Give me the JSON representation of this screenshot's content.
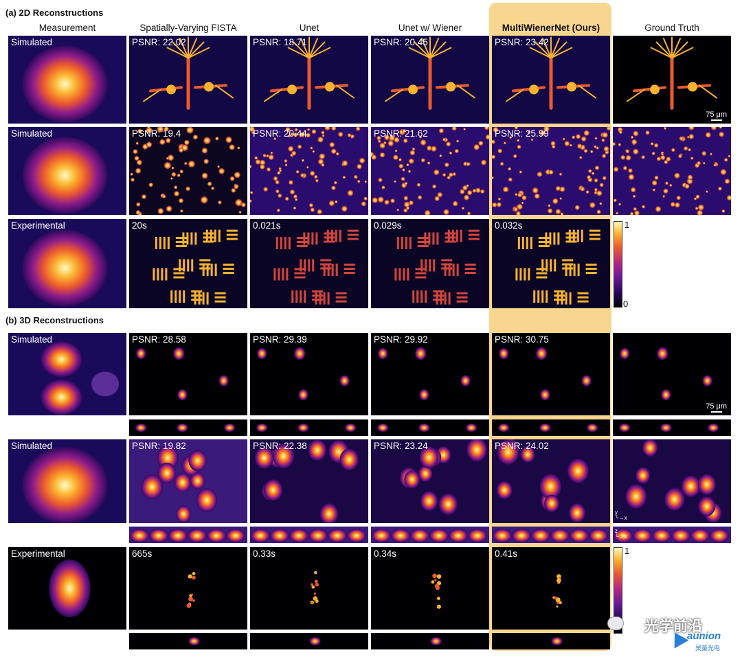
{
  "sections": {
    "a_title": "(a) 2D Reconstructions",
    "b_title": "(b) 3D Reconstructions"
  },
  "columns": [
    {
      "label": "Measurement"
    },
    {
      "label": "Spatially-Varying FISTA"
    },
    {
      "label": "Unet"
    },
    {
      "label": "Unet w/ Wiener"
    },
    {
      "label": "MultiWienerNet (Ours)",
      "highlighted": true
    },
    {
      "label": "Ground Truth"
    }
  ],
  "rows": [
    {
      "type": "Simulated",
      "values": [
        "PSNR: 22.02",
        "PSNR: 18.71",
        "PSNR: 20.45",
        "PSNR: 23.42"
      ]
    },
    {
      "type": "Simulated",
      "values": [
        "PSNR: 19.4",
        "PSNR: 20.44",
        "PSNR: 21.62",
        "PSNR: 25.99"
      ]
    },
    {
      "type": "Experimental",
      "values": [
        "20s",
        "0.021s",
        "0.029s",
        "0.032s"
      ]
    },
    {
      "type": "Simulated",
      "values": [
        "PSNR: 28.58",
        "PSNR: 29.39",
        "PSNR: 29.92",
        "PSNR: 30.75"
      ]
    },
    {
      "type": "Simulated",
      "values": [
        "PSNR: 19.82",
        "PSNR: 22.38",
        "PSNR: 23.24",
        "PSNR: 24.02"
      ]
    },
    {
      "type": "Experimental",
      "values": [
        "665s",
        "0.33s",
        "0.34s",
        "0.41s"
      ]
    }
  ],
  "scale_bars": [
    "75 μm",
    "75 μm"
  ],
  "colorbar": {
    "max_label": "1",
    "min_label": "0"
  },
  "axes_labels": {
    "xy_y": "y",
    "xy_x": "x",
    "xz_z": "z",
    "xz_x": "x"
  },
  "colors": {
    "highlight": "#f9d68f",
    "colormap": "plasma"
  },
  "watermark": {
    "text": "光学前沿",
    "brand": "aunion",
    "brand_sub": "昊量光电"
  }
}
